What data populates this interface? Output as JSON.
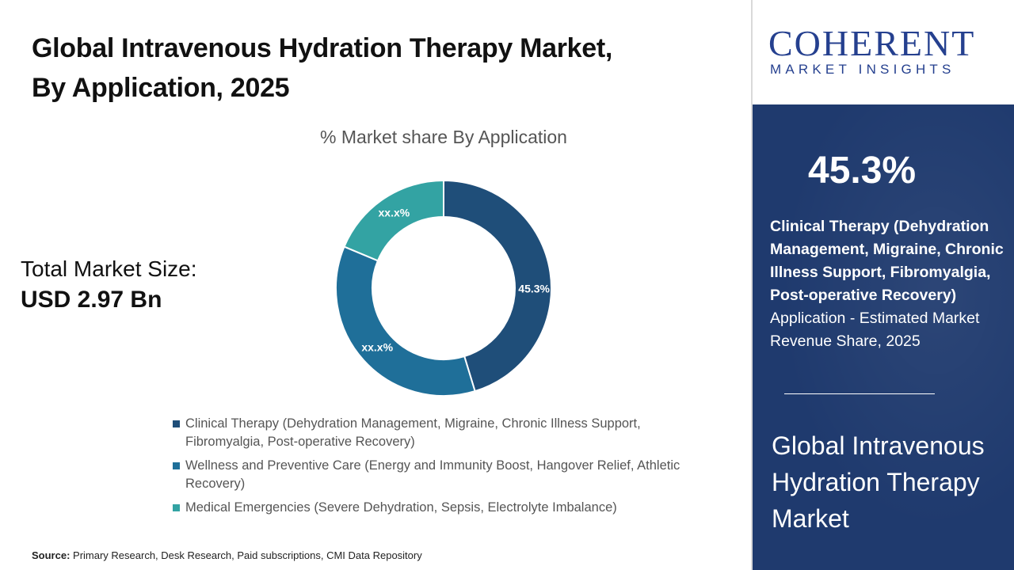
{
  "header": {
    "title_line1": "Global Intravenous Hydration Therapy Market,",
    "title_line2": "By Application, 2025"
  },
  "summary": {
    "total_label": "Total Market Size:",
    "total_value": "USD 2.97 Bn"
  },
  "chart_data": {
    "type": "pie",
    "variant": "donut",
    "title": "% Market share By Application",
    "series": [
      {
        "name": "Clinical Therapy (Dehydration Management, Migraine, Chronic Illness Support, Fibromyalgia, Post-operative Recovery)",
        "value": 45.3,
        "label": "45.3%",
        "color": "#1f4e79"
      },
      {
        "name": "Wellness and Preventive Care (Energy and Immunity Boost, Hangover Relief, Athletic Recovery)",
        "value": 36.0,
        "label": "xx.x%",
        "color": "#1f6f99"
      },
      {
        "name": "Medical Emergencies (Severe Dehydration, Sepsis, Electrolyte Imbalance)",
        "value": 18.7,
        "label": "xx.x%",
        "color": "#33a3a3"
      }
    ],
    "legend_position": "bottom"
  },
  "source": {
    "label": "Source:",
    "text": " Primary Research, Desk Research, Paid subscriptions, CMI Data Repository"
  },
  "brand": {
    "name": "COHERENT",
    "tagline": "MARKET INSIGHTS",
    "color": "#25408f"
  },
  "sidebar": {
    "kpi_value": "45.3%",
    "kpi_bold": "Clinical Therapy (Dehydration Management, Migraine, Chronic Illness Support, Fibromyalgia, Post-operative Recovery)",
    "kpi_rest": " Application - Estimated Market Revenue Share, 2025",
    "market_name": "Global Intravenous Hydration Therapy Market",
    "panel_color": "#1f3a6e"
  }
}
